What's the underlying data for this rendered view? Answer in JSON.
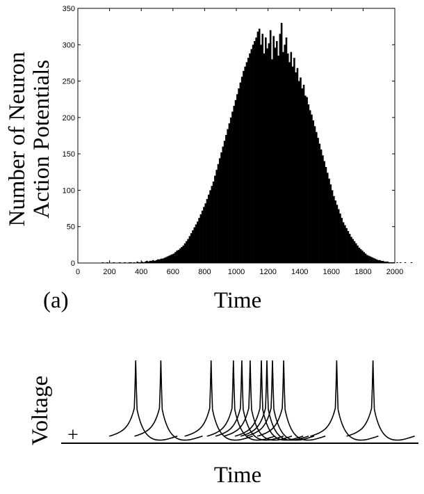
{
  "chart_data": [
    {
      "type": "bar",
      "panel_label": "(a)",
      "xlabel": "Time",
      "ylabel_lines": [
        "Number of Neuron",
        "Action Potentials"
      ],
      "xlim": [
        0,
        2000
      ],
      "ylim": [
        0,
        350
      ],
      "xticks": [
        0,
        200,
        400,
        600,
        800,
        1000,
        1200,
        1400,
        1600,
        1800,
        2000
      ],
      "yticks": [
        0,
        50,
        100,
        150,
        200,
        250,
        300,
        350
      ],
      "grid": false,
      "bin_width": 10,
      "bin_start": 150,
      "values": [
        1,
        0,
        0,
        1,
        0,
        0,
        0,
        1,
        0,
        0,
        0,
        1,
        0,
        0,
        1,
        0,
        0,
        1,
        1,
        0,
        1,
        0,
        2,
        1,
        1,
        2,
        1,
        2,
        3,
        2,
        3,
        3,
        4,
        3,
        4,
        5,
        5,
        6,
        6,
        7,
        8,
        9,
        10,
        11,
        12,
        13,
        15,
        17,
        18,
        20,
        22,
        24,
        27,
        30,
        33,
        37,
        41,
        45,
        49,
        53,
        57,
        62,
        67,
        72,
        77,
        82,
        88,
        94,
        100,
        106,
        112,
        120,
        128,
        136,
        144,
        152,
        160,
        168,
        176,
        184,
        192,
        200,
        208,
        216,
        224,
        232,
        240,
        248,
        256,
        264,
        270,
        276,
        282,
        288,
        294,
        300,
        305,
        310,
        318,
        322,
        300,
        315,
        288,
        310,
        295,
        302,
        320,
        280,
        312,
        296,
        305,
        285,
        315,
        330,
        290,
        300,
        310,
        288,
        276,
        290,
        270,
        282,
        262,
        268,
        250,
        255,
        240,
        245,
        230,
        228,
        218,
        210,
        204,
        196,
        188,
        180,
        172,
        164,
        156,
        148,
        140,
        132,
        124,
        116,
        108,
        100,
        92,
        86,
        80,
        74,
        68,
        62,
        56,
        52,
        48,
        44,
        40,
        36,
        33,
        30,
        27,
        24,
        21,
        19,
        17,
        15,
        13,
        11,
        10,
        9,
        8,
        7,
        6,
        5,
        4,
        4,
        3,
        3,
        2,
        2,
        2,
        1,
        1,
        1,
        1,
        0,
        1,
        0,
        1,
        0,
        0,
        1,
        0,
        0,
        0,
        1,
        0
      ]
    },
    {
      "type": "line",
      "xlabel": "Time",
      "ylabel": "Voltage",
      "marker_symbol": "+",
      "spike_times": [
        0.15,
        0.24,
        0.42,
        0.5,
        0.53,
        0.56,
        0.6,
        0.62,
        0.64,
        0.68,
        0.87,
        1.0
      ]
    }
  ]
}
